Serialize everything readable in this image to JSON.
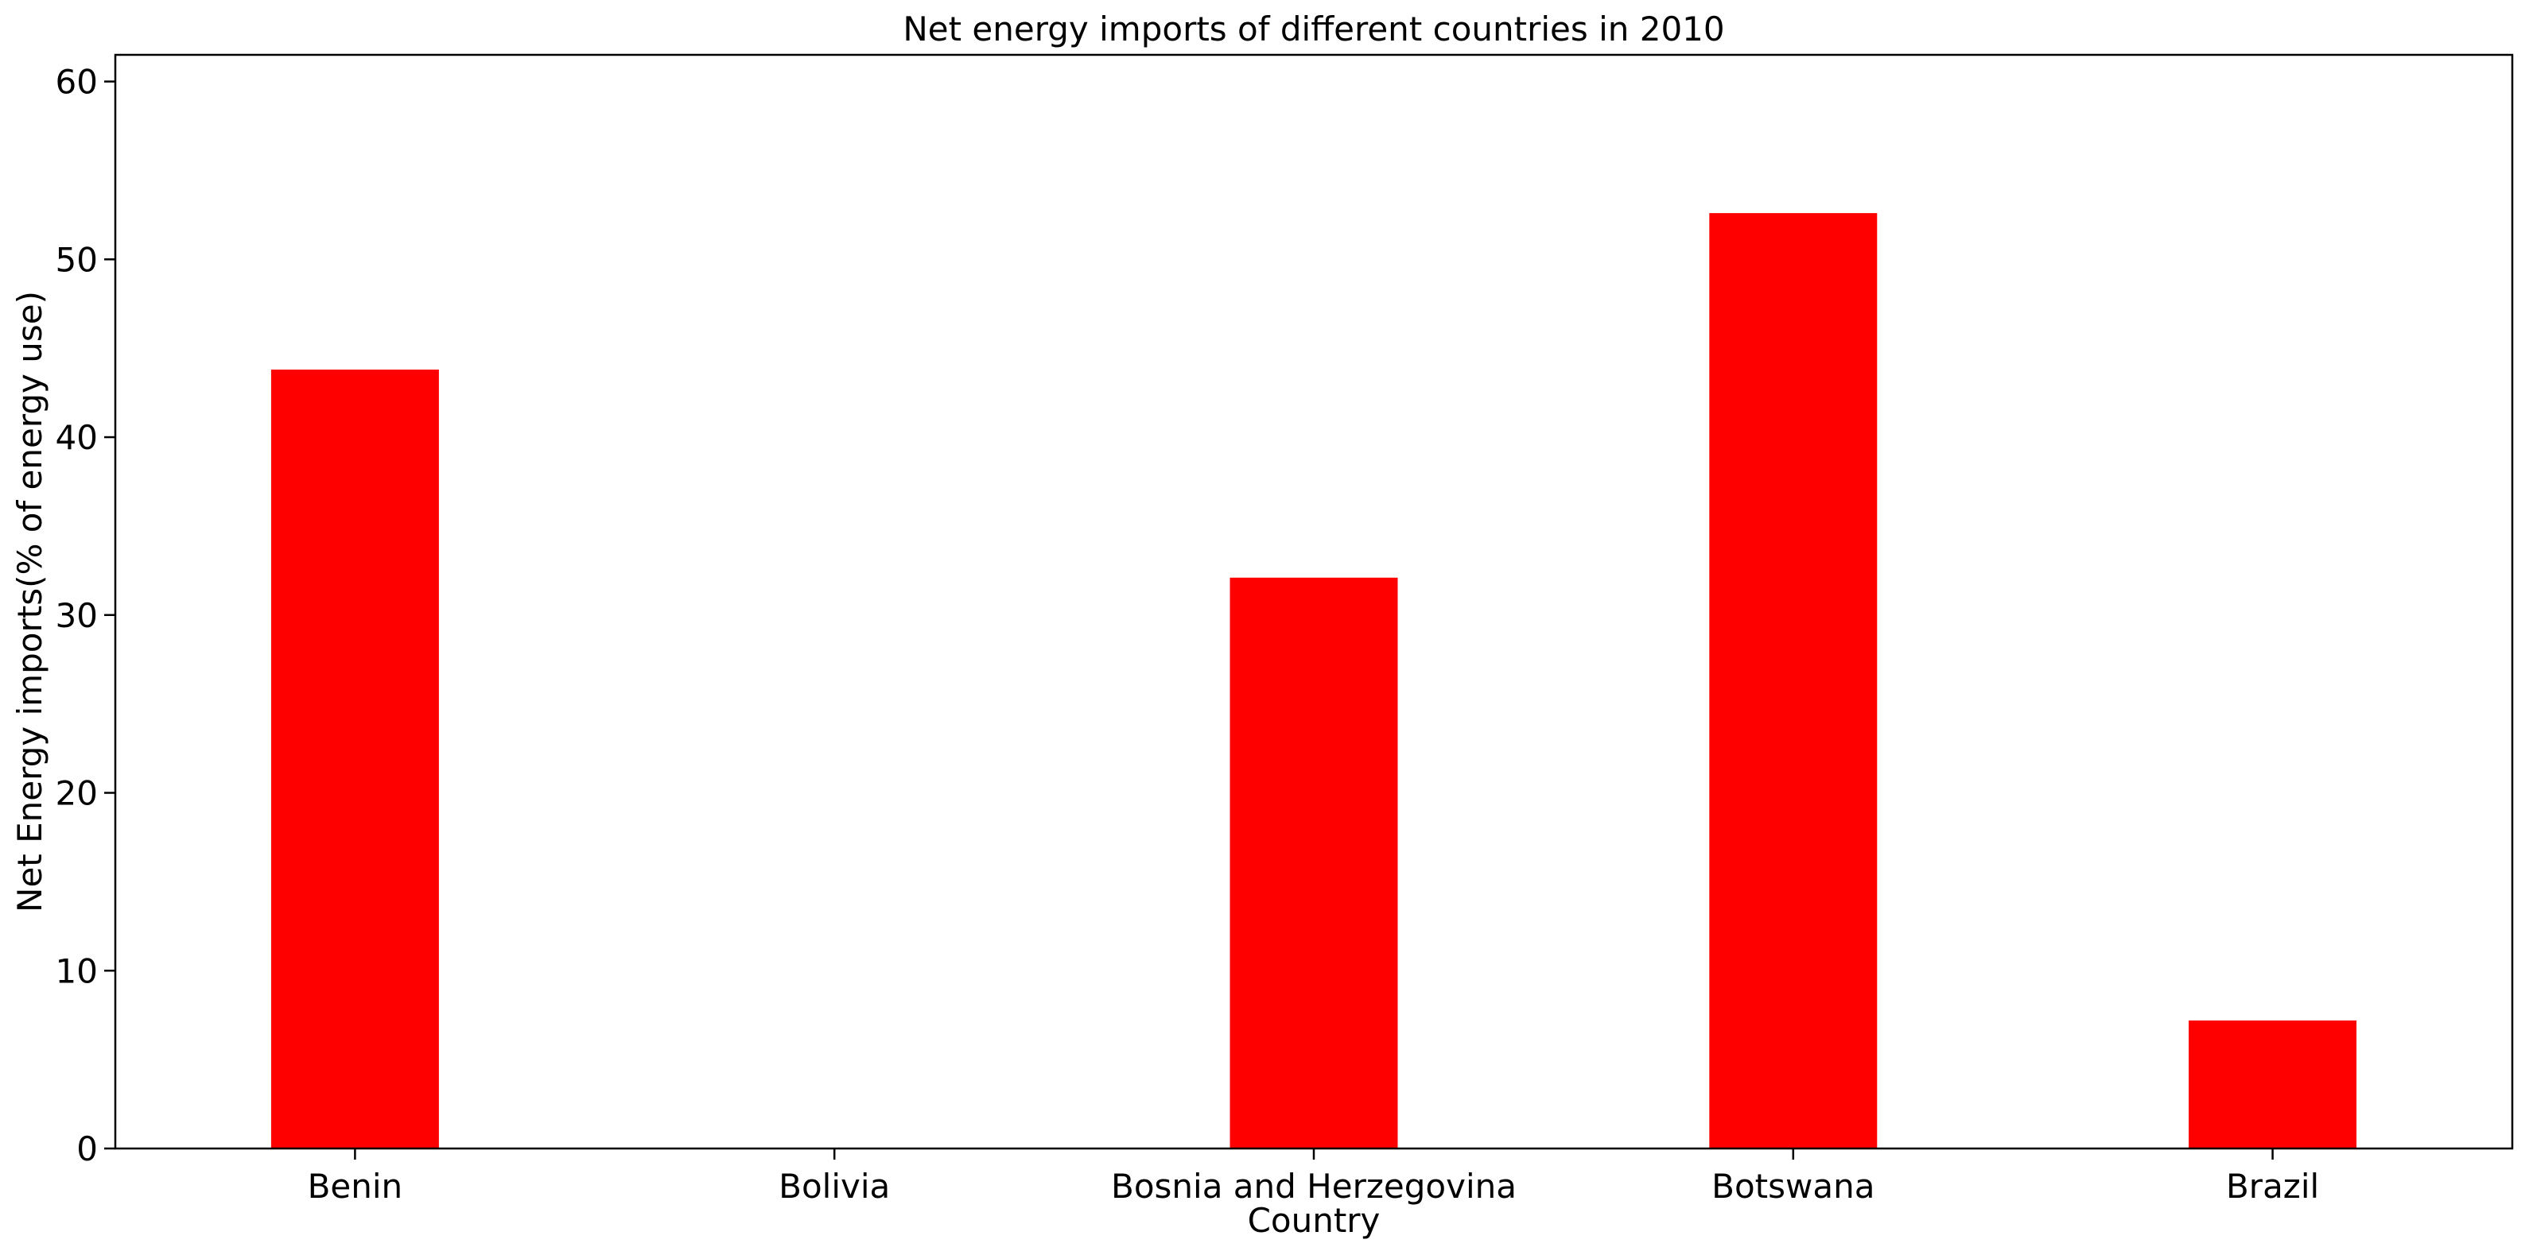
{
  "chart_data": {
    "type": "bar",
    "title": "Net energy imports of different countries in 2010",
    "xlabel": "Country",
    "ylabel": "Net Energy imports(% of energy use)",
    "categories": [
      "Benin",
      "Bolivia",
      "Bosnia and Herzegovina",
      "Botswana",
      "Brazil"
    ],
    "values": [
      43.8,
      0,
      32.1,
      52.6,
      7.2
    ],
    "ylim": [
      0,
      61.5
    ],
    "yticks": [
      0,
      10,
      20,
      30,
      40,
      50,
      60
    ],
    "bar_color": "#ff0000",
    "grid": false,
    "legend": "none"
  }
}
